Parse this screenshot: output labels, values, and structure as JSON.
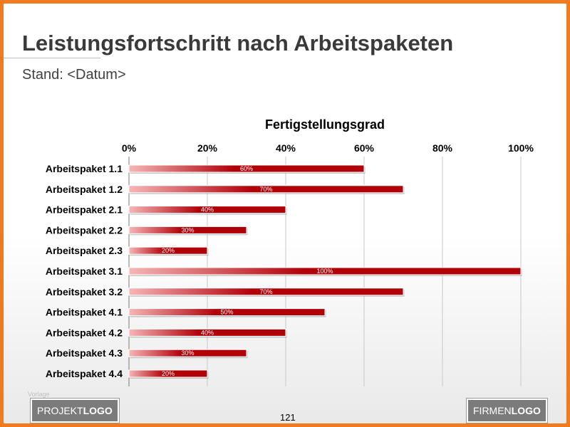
{
  "header": {
    "title": "Leistungsfortschritt nach Arbeitspaketen",
    "subtitle": "Stand: <Datum>"
  },
  "colors": {
    "frame": "#f07a1e",
    "bar_dark": "#b00008",
    "bar_light": "#f6b6b8"
  },
  "chart_data": {
    "type": "bar",
    "orientation": "horizontal",
    "title": "Fertigstellungsgrad",
    "categories": [
      "Arbeitspaket 1.1",
      "Arbeitspaket 1.2",
      "Arbeitspaket 2.1",
      "Arbeitspaket 2.2",
      "Arbeitspaket 2.3",
      "Arbeitspaket 3.1",
      "Arbeitspaket 3.2",
      "Arbeitspaket 4.1",
      "Arbeitspaket 4.2",
      "Arbeitspaket 4.3",
      "Arbeitspaket 4.4"
    ],
    "values": [
      60,
      70,
      40,
      30,
      20,
      100,
      70,
      50,
      40,
      30,
      20
    ],
    "data_labels": [
      "60%",
      "70%",
      "40%",
      "30%",
      "20%",
      "100%",
      "70%",
      "50%",
      "40%",
      "30%",
      "20%"
    ],
    "xlim": [
      0,
      100
    ],
    "ticks": [
      "0%",
      "20%",
      "40%",
      "60%",
      "80%",
      "100%"
    ],
    "tick_values": [
      0,
      20,
      40,
      60,
      80,
      100
    ],
    "axis_position": "top",
    "grid": true
  },
  "footer": {
    "note": "Vorlage",
    "project_logo_light": "PROJEKT",
    "project_logo_bold": "LOGO",
    "company_logo_light": "FIRMEN",
    "company_logo_bold": "LOGO",
    "page_number": "121"
  }
}
